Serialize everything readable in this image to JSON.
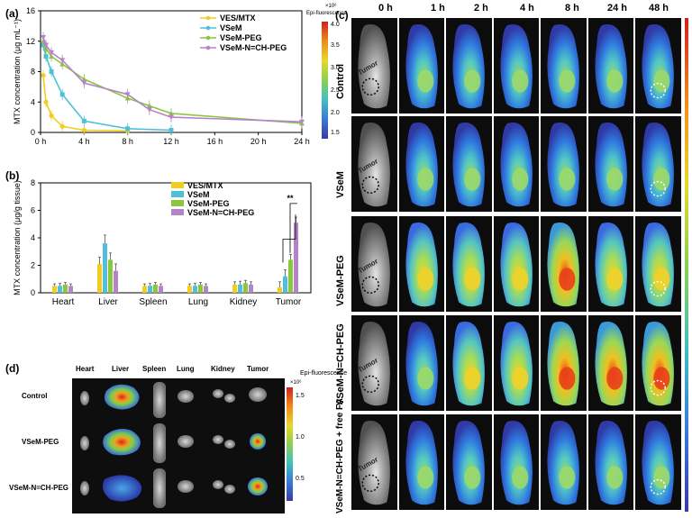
{
  "panel_labels": {
    "a": "(a)",
    "b": "(b)",
    "c": "(c)",
    "d": "(d)"
  },
  "colorbar": {
    "title": "Epi-fluorescence",
    "exponent_a": "×10⁶",
    "exponent_d": "×10⁶",
    "ticks_a": [
      "4.0",
      "3.5",
      "3.0",
      "2.5",
      "2.0",
      "1.5"
    ],
    "ticks_d": [
      "1.5",
      "1.0",
      "0.5"
    ]
  },
  "colors": {
    "VES/MTX": "#f2cd1f",
    "VSeM": "#4fc0d8",
    "VSeM-PEG": "#8cc63f",
    "VSeM-N=CH-PEG": "#b583c8",
    "dark_bg": "#101010"
  },
  "chart_data": [
    {
      "type": "line",
      "panel": "a",
      "xlabel": "",
      "ylabel": "MTX concentration (μg mL⁻¹)",
      "xlim": [
        0,
        24
      ],
      "ylim": [
        0,
        16
      ],
      "xticks": [
        0,
        4,
        8,
        12,
        16,
        20,
        24
      ],
      "xtick_labels": [
        "0 h",
        "4 h",
        "8 h",
        "12 h",
        "16 h",
        "20 h",
        "24 h"
      ],
      "yticks": [
        0,
        4,
        8,
        12,
        16
      ],
      "ytick_labels": [
        "0",
        "4",
        "8",
        "12",
        "16"
      ],
      "legend_position": "top-right",
      "series": [
        {
          "name": "VES/MTX",
          "x": [
            0.25,
            0.5,
            1,
            2,
            4,
            8
          ],
          "y": [
            7.5,
            4.0,
            2.2,
            0.8,
            0.3,
            0.2
          ]
        },
        {
          "name": "VSeM",
          "x": [
            0.25,
            0.5,
            1,
            2,
            4,
            8,
            12
          ],
          "y": [
            11.5,
            10.0,
            8.0,
            5.0,
            1.5,
            0.5,
            0.3
          ]
        },
        {
          "name": "VSeM-PEG",
          "x": [
            0.25,
            0.5,
            1,
            2,
            4,
            8,
            10,
            12,
            24
          ],
          "y": [
            12.0,
            11.0,
            10.0,
            9.0,
            7.0,
            4.5,
            3.5,
            2.5,
            1.2
          ]
        },
        {
          "name": "VSeM-N=CH-PEG",
          "x": [
            0.25,
            0.5,
            1,
            2,
            4,
            8,
            10,
            12,
            24
          ],
          "y": [
            12.5,
            11.5,
            10.5,
            9.5,
            6.5,
            5.0,
            3.0,
            2.0,
            1.4
          ]
        }
      ]
    },
    {
      "type": "bar",
      "panel": "b",
      "xlabel": "",
      "ylabel": "MTX concentration (μg/g tissue)",
      "ylim": [
        0,
        8
      ],
      "yticks": [
        0,
        2,
        4,
        6,
        8
      ],
      "ytick_labels": [
        "0",
        "2",
        "4",
        "6",
        "8"
      ],
      "categories": [
        "Heart",
        "Liver",
        "Spleen",
        "Lung",
        "Kidney",
        "Tumor"
      ],
      "legend_position": "top-right",
      "annotation": "**",
      "series": [
        {
          "name": "VES/MTX",
          "values": [
            0.5,
            2.1,
            0.5,
            0.5,
            0.6,
            0.4
          ]
        },
        {
          "name": "VSeM",
          "values": [
            0.5,
            3.6,
            0.5,
            0.5,
            0.6,
            1.2
          ]
        },
        {
          "name": "VSeM-PEG",
          "values": [
            0.6,
            2.4,
            0.6,
            0.6,
            0.7,
            2.4
          ]
        },
        {
          "name": "VSeM-N=CH-PEG",
          "values": [
            0.5,
            1.6,
            0.5,
            0.5,
            0.6,
            5.1
          ]
        }
      ],
      "errors": [
        0.15,
        0.5,
        0.15,
        0.15,
        0.2,
        0.4
      ]
    }
  ],
  "panel_c": {
    "timepoints": [
      "0 h",
      "1 h",
      "2 h",
      "4 h",
      "8 h",
      "24 h",
      "48 h"
    ],
    "groups": [
      "Control",
      "VSeM",
      "VSeM-PEG",
      "VSeM-N=CH-PEG",
      "VSeM-N=CH-PEG + free FA"
    ],
    "tumor_label": "Tumor"
  },
  "panel_d": {
    "organs": [
      "Heart",
      "Liver",
      "Spleen",
      "Lung",
      "Kidney",
      "Tumor"
    ],
    "rows": [
      "Control",
      "VSeM-PEG",
      "VSeM-N=CH-PEG"
    ]
  }
}
